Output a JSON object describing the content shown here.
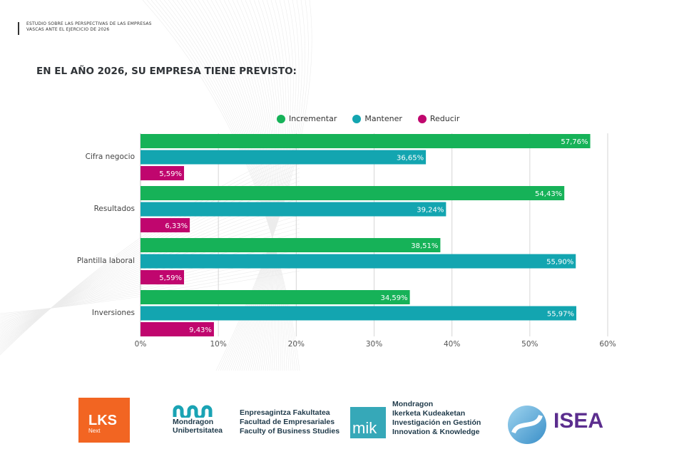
{
  "header": {
    "line1": "ESTUDIO SOBRE LAS PERSPECTIVAS DE LAS EMPRESAS",
    "line2": "VASCAS ANTE EL EJERCICIO DE 2026"
  },
  "chart_data": {
    "type": "bar",
    "orientation": "horizontal",
    "title": "EN EL AÑO 2026, SU EMPRESA TIENE PREVISTO:",
    "xlabel": "",
    "ylabel": "",
    "categories": [
      "Cifra negocio",
      "Resultados",
      "Plantilla laboral",
      "Inversiones"
    ],
    "series": [
      {
        "name": "Incrementar",
        "color": "#16b258",
        "values": [
          57.76,
          54.43,
          38.51,
          34.59
        ],
        "labels": [
          "57,76%",
          "54,43%",
          "38,51%",
          "34,59%"
        ]
      },
      {
        "name": "Mantener",
        "color": "#13a5b0",
        "values": [
          36.65,
          39.24,
          55.9,
          55.97
        ],
        "labels": [
          "36,65%",
          "39,24%",
          "55,90%",
          "55,97%"
        ]
      },
      {
        "name": "Reducir",
        "color": "#c0066e",
        "values": [
          5.59,
          6.33,
          5.59,
          9.43
        ],
        "labels": [
          "5,59%",
          "6,33%",
          "5,59%",
          "9,43%"
        ]
      }
    ],
    "xlim": [
      0,
      60
    ],
    "xticks": [
      0,
      10,
      20,
      30,
      40,
      50,
      60
    ],
    "xtick_labels": [
      "0%",
      "10%",
      "20%",
      "30%",
      "40%",
      "50%",
      "60%"
    ],
    "grid": true,
    "legend_position": "top-center"
  },
  "logos": {
    "lks": {
      "main": "LKS",
      "sub": "Next"
    },
    "mondragon_uni": {
      "line1": "Mondragon",
      "line2": "Unibertsitatea"
    },
    "faculty": {
      "line1": "Enpresagintza Fakultatea",
      "line2": "Facultad de Empresariales",
      "line3": "Faculty of Business Studies"
    },
    "mik": {
      "box": "mik",
      "line1": "Mondragon",
      "line2": "Ikerketa Kudeaketan",
      "line3": "Investigación en Gestión",
      "line4": "Innovation & Knowledge"
    },
    "isea": {
      "text": "ISEA"
    }
  }
}
